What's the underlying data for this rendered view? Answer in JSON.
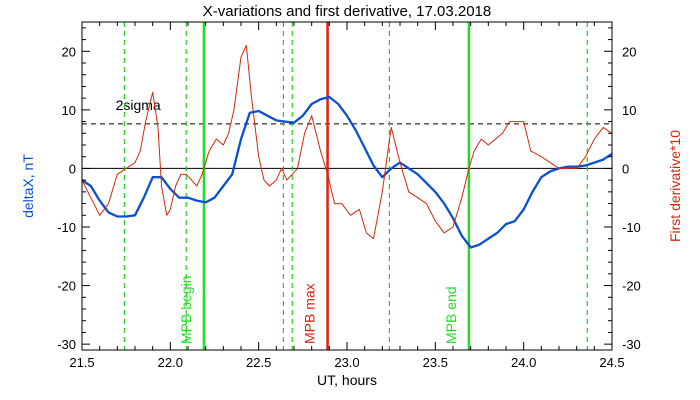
{
  "chart_data": {
    "type": "line",
    "title": "X-variations and first derivative, 17.03.2018",
    "xlabel": "UT, hours",
    "ylabel_left": "deltaX, nT",
    "ylabel_right": "First derivative*10",
    "xlim": [
      21.5,
      24.5
    ],
    "ylim": [
      -31,
      25
    ],
    "x_ticks": [
      21.5,
      22.0,
      22.5,
      23.0,
      23.5,
      24.0,
      24.5
    ],
    "x_tick_labels": [
      "21.5",
      "22.0",
      "22.5",
      "23.0",
      "23.5",
      "24.0",
      "24.5"
    ],
    "y_ticks": [
      20,
      10,
      0,
      -10,
      -20,
      -30
    ],
    "y_tick_labels": [
      "20",
      "10",
      "0",
      "-10",
      "-20",
      "-30"
    ],
    "grid": false,
    "colors": {
      "deltax": "#0a50d2",
      "derivative": "#d2280a",
      "mpb_green": "#22dd22",
      "mpb_dashed": "#22cc22",
      "mpb_max": "#e02010",
      "ylabel_left": "#0a50d2",
      "ylabel_right": "#d2280a"
    },
    "hlines": [
      {
        "y": 0,
        "style": "solid"
      },
      {
        "y": 7.6,
        "style": "dashed",
        "label": "2sigma"
      }
    ],
    "dashed_vlines": [
      21.74,
      22.09,
      22.64,
      22.69,
      23.24,
      24.36
    ],
    "markers": [
      {
        "x": 22.19,
        "label": "MPB begin",
        "color": "#22dd22"
      },
      {
        "x": 22.89,
        "label": "MPB max",
        "color": "#e02010"
      },
      {
        "x": 23.69,
        "label": "MPB end",
        "color": "#22dd22"
      }
    ],
    "series": [
      {
        "key": "deltax",
        "x": [
          21.5,
          21.55,
          21.6,
          21.65,
          21.7,
          21.75,
          21.8,
          21.85,
          21.9,
          21.95,
          22.0,
          22.05,
          22.1,
          22.15,
          22.2,
          22.25,
          22.3,
          22.35,
          22.4,
          22.45,
          22.5,
          22.55,
          22.6,
          22.65,
          22.7,
          22.75,
          22.8,
          22.85,
          22.9,
          22.95,
          23.0,
          23.05,
          23.1,
          23.15,
          23.2,
          23.25,
          23.3,
          23.35,
          23.4,
          23.45,
          23.5,
          23.55,
          23.6,
          23.65,
          23.7,
          23.75,
          23.8,
          23.85,
          23.9,
          23.95,
          24.0,
          24.05,
          24.1,
          24.15,
          24.2,
          24.25,
          24.3,
          24.35,
          24.4,
          24.45,
          24.5
        ],
        "values": [
          -2,
          -3,
          -5.5,
          -7.5,
          -8.2,
          -8.2,
          -8,
          -5,
          -1.5,
          -1.5,
          -3.5,
          -5,
          -5,
          -5.5,
          -5.8,
          -5,
          -3,
          -1,
          5,
          9.5,
          9.8,
          9,
          8.2,
          8,
          7.8,
          9,
          11,
          11.8,
          12.2,
          11,
          9,
          6.5,
          3.5,
          0.5,
          -1.5,
          0,
          1,
          0,
          -1,
          -2.5,
          -4,
          -6,
          -8.5,
          -11.5,
          -13.5,
          -13,
          -12,
          -11,
          -9.5,
          -9,
          -7,
          -4,
          -1.5,
          -0.5,
          0,
          0.3,
          0.3,
          0.5,
          1,
          1.5,
          2.5
        ]
      },
      {
        "key": "derivative",
        "x": [
          21.5,
          21.55,
          21.6,
          21.65,
          21.7,
          21.75,
          21.8,
          21.83,
          21.86,
          21.9,
          21.93,
          21.95,
          21.98,
          22.0,
          22.03,
          22.06,
          22.09,
          22.12,
          22.15,
          22.18,
          22.22,
          22.26,
          22.3,
          22.33,
          22.36,
          22.4,
          22.43,
          22.46,
          22.5,
          22.53,
          22.56,
          22.6,
          22.63,
          22.66,
          22.69,
          22.72,
          22.76,
          22.8,
          22.85,
          22.89,
          22.93,
          22.97,
          23.02,
          23.07,
          23.11,
          23.15,
          23.2,
          23.25,
          23.3,
          23.35,
          23.4,
          23.45,
          23.5,
          23.55,
          23.6,
          23.65,
          23.69,
          23.72,
          23.76,
          23.8,
          23.84,
          23.88,
          23.92,
          23.96,
          24.0,
          24.04,
          24.1,
          24.15,
          24.2,
          24.25,
          24.3,
          24.35,
          24.4,
          24.45,
          24.5
        ],
        "values": [
          -2,
          -5,
          -8,
          -6,
          -1,
          0,
          1,
          3,
          8,
          13,
          7,
          -3,
          -8,
          -7,
          -3,
          -1,
          -1,
          -2,
          -3,
          -1,
          3,
          5,
          4,
          6,
          10,
          19,
          21,
          12,
          2,
          -2,
          -3,
          -2,
          0,
          -2,
          -1,
          0,
          6,
          9,
          3,
          -1,
          -6,
          -6,
          -8,
          -7,
          -11,
          -12,
          -4,
          7,
          1,
          -4,
          -5,
          -6,
          -9,
          -11,
          -10,
          -5,
          0,
          3,
          5,
          4,
          5,
          6,
          8,
          8,
          8,
          3,
          2,
          1,
          0,
          0,
          0,
          2,
          5,
          7,
          6
        ]
      }
    ]
  }
}
